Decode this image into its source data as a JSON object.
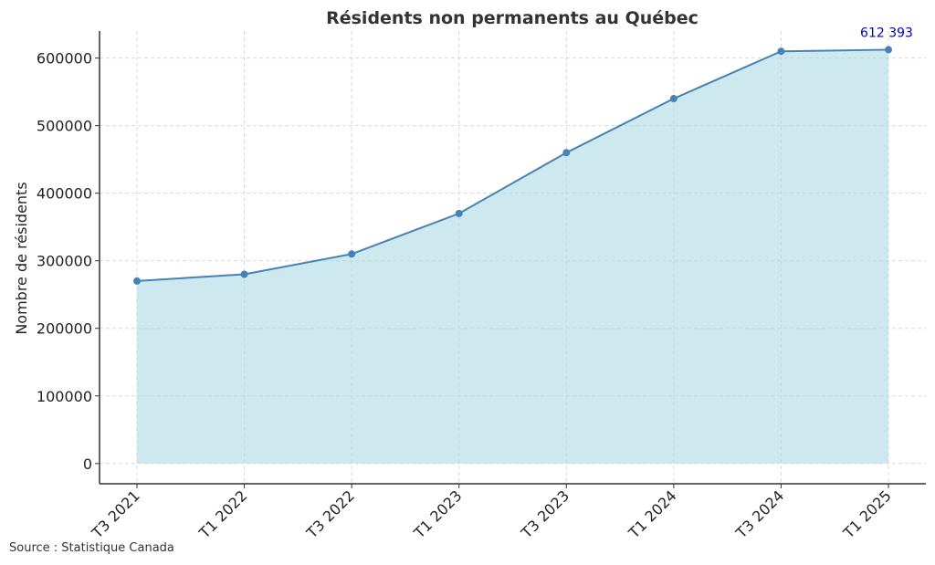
{
  "chart_data": {
    "type": "area",
    "title": "Résidents non permanents au Québec",
    "xlabel": "",
    "ylabel": "Nombre de résidents",
    "categories": [
      "T3 2021",
      "T1 2022",
      "T3 2022",
      "T1 2023",
      "T3 2023",
      "T1 2024",
      "T3 2024",
      "T1 2025"
    ],
    "values": [
      270000,
      280000,
      310000,
      370000,
      460000,
      540000,
      610000,
      612393
    ],
    "ylim": [
      -30000,
      640000
    ],
    "yticks": [
      0,
      100000,
      200000,
      300000,
      400000,
      500000,
      600000
    ],
    "ytick_labels": [
      "0",
      "100000",
      "200000",
      "300000",
      "400000",
      "500000",
      "600000"
    ],
    "grid": true,
    "annotation": {
      "text": "612 393",
      "category": "T1 2025",
      "value": 612393
    },
    "colors": {
      "line": "#4682b4",
      "fill": "#add8e6",
      "annotation": "#0000cd"
    }
  },
  "footer": {
    "source": "Source : Statistique Canada"
  }
}
